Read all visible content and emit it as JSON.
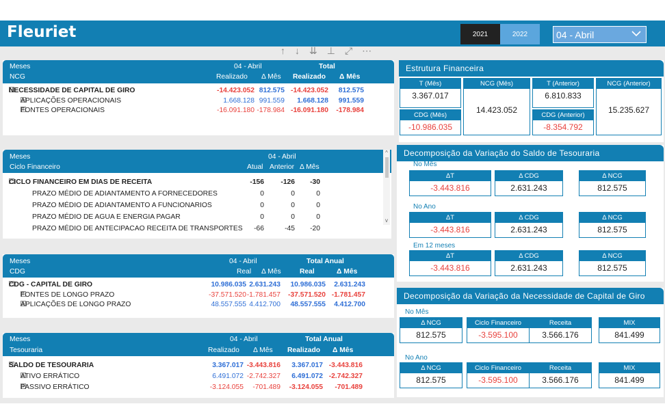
{
  "header": {
    "title": "Fleuriet",
    "year_a": "2021",
    "year_b": "2022",
    "month_value": "04 - Abril"
  },
  "t1": {
    "h_meses": "Meses",
    "h_group": "04 - Abril",
    "h_total": "Total",
    "h_ncg": "NCG",
    "cols": [
      "Realizado",
      "Δ Mês",
      "Realizado",
      "Δ Mês"
    ],
    "rows": [
      {
        "label": "NECESSIDADE DE CAPITAL DE GIRO",
        "v1": "-14.423.052",
        "v2": "812.575",
        "v3": "-14.423.052",
        "v4": "812.575"
      },
      {
        "label": "APLICAÇÕES OPERACIONAIS",
        "v1": "1.668.128",
        "v2": "991.559",
        "v3": "1.668.128",
        "v4": "991.559"
      },
      {
        "label": "FONTES OPERACIONAIS",
        "v1": "-16.091.180",
        "v2": "-178.984",
        "v3": "-16.091.180",
        "v4": "-178.984"
      }
    ]
  },
  "t2": {
    "h_meses": "Meses",
    "h_group": "04 - Abril",
    "h_ciclo": "Ciclo Financeiro",
    "cols": [
      "Atual",
      "Anterior",
      "Δ Mês"
    ],
    "rows": [
      {
        "label": "CICLO FINANCEIRO EM DIAS DE RECEITA",
        "v1": "-156",
        "v2": "-126",
        "v3": "-30"
      },
      {
        "label": "PRAZO MÉDIO DE ADIANTAMENTO A FORNECEDORES",
        "v1": "0",
        "v2": "0",
        "v3": "0"
      },
      {
        "label": "PRAZO MÉDIO DE ADIANTAMENTO A FUNCIONARIOS",
        "v1": "0",
        "v2": "0",
        "v3": "0"
      },
      {
        "label": "PRAZO MÉDIO DE AGUA E ENERGIA PAGAR",
        "v1": "0",
        "v2": "0",
        "v3": "0"
      },
      {
        "label": "PRAZO MÉDIO DE ANTECIPACAO RECEITA DE TRANSPORTES",
        "v1": "-66",
        "v2": "-45",
        "v3": "-20"
      }
    ]
  },
  "t3": {
    "h_meses": "Meses",
    "h_group": "04 - Abril",
    "h_total": "Total Anual",
    "h_cdg": "CDG",
    "cols": [
      "Real",
      "Δ Mês",
      "Real",
      "Δ Mês"
    ],
    "rows": [
      {
        "label": "CDG - CAPITAL DE GIRO",
        "v1": "10.986.035",
        "v2": "2.631.243",
        "v3": "10.986.035",
        "v4": "2.631.243"
      },
      {
        "label": "FONTES DE LONGO PRAZO",
        "v1": "-37.571.520",
        "v2": "-1.781.457",
        "v3": "-37.571.520",
        "v4": "-1.781.457"
      },
      {
        "label": "APLICAÇÕES DE LONGO PRAZO",
        "v1": "48.557.555",
        "v2": "4.412.700",
        "v3": "48.557.555",
        "v4": "4.412.700"
      }
    ]
  },
  "t4": {
    "h_meses": "Meses",
    "h_group": "04 - Abril",
    "h_total": "Total Anual",
    "h_tes": "Tesouraria",
    "cols": [
      "Realizado",
      "Δ Mês",
      "Realizado",
      "Δ Mês"
    ],
    "rows": [
      {
        "label": "SALDO DE TESOURARIA",
        "v1": "3.367.017",
        "v2": "-3.443.816",
        "v3": "3.367.017",
        "v4": "-3.443.816"
      },
      {
        "label": "ATIVO ERRÁTICO",
        "v1": "6.491.072",
        "v2": "-2.742.327",
        "v3": "6.491.072",
        "v4": "-2.742.327"
      },
      {
        "label": "PASSIVO ERRÁTICO",
        "v1": "-3.124.055",
        "v2": "-701.489",
        "v3": "-3.124.055",
        "v4": "-701.489"
      }
    ]
  },
  "ef": {
    "title": "Estrutura Financeira",
    "t_mes": "T (Mês)",
    "t_mes_v": "3.367.017",
    "cdg_mes": "CDG (Mês)",
    "cdg_mes_v": "-10.986.035",
    "ncg_mes": "NCG (Mês)",
    "ncg_mes_v": "14.423.052",
    "t_ant": "T (Anterior)",
    "t_ant_v": "6.810.833",
    "cdg_ant": "CDG (Anterior)",
    "cdg_ant_v": "-8.354.792",
    "ncg_ant": "NCG (Anterior)",
    "ncg_ant_v": "15.235.627"
  },
  "dst": {
    "title": "Decomposição da Variação do Saldo de Tesouraria",
    "labels": [
      "ΔT",
      "Δ CDG",
      "Δ NCG"
    ],
    "groups": [
      {
        "name": "No Mês",
        "v": [
          "-3.443.816",
          "2.631.243",
          "812.575"
        ]
      },
      {
        "name": "No Ano",
        "v": [
          "-3.443.816",
          "2.631.243",
          "812.575"
        ]
      },
      {
        "name": "Em 12 meses",
        "v": [
          "-3.443.816",
          "2.631.243",
          "812.575"
        ]
      }
    ]
  },
  "dncg": {
    "title": "Decomposição da Variação da Necessidade de Capital de Giro",
    "labels": [
      "Δ NCG",
      "Ciclo Financeiro",
      "Receita",
      "MIX"
    ],
    "groups": [
      {
        "name": "No Mês",
        "v": [
          "812.575",
          "-3.595.100",
          "3.566.176",
          "841.499"
        ]
      },
      {
        "name": "No Ano",
        "v": [
          "812.575",
          "-3.595.100",
          "3.566.176",
          "841.499"
        ]
      }
    ]
  }
}
